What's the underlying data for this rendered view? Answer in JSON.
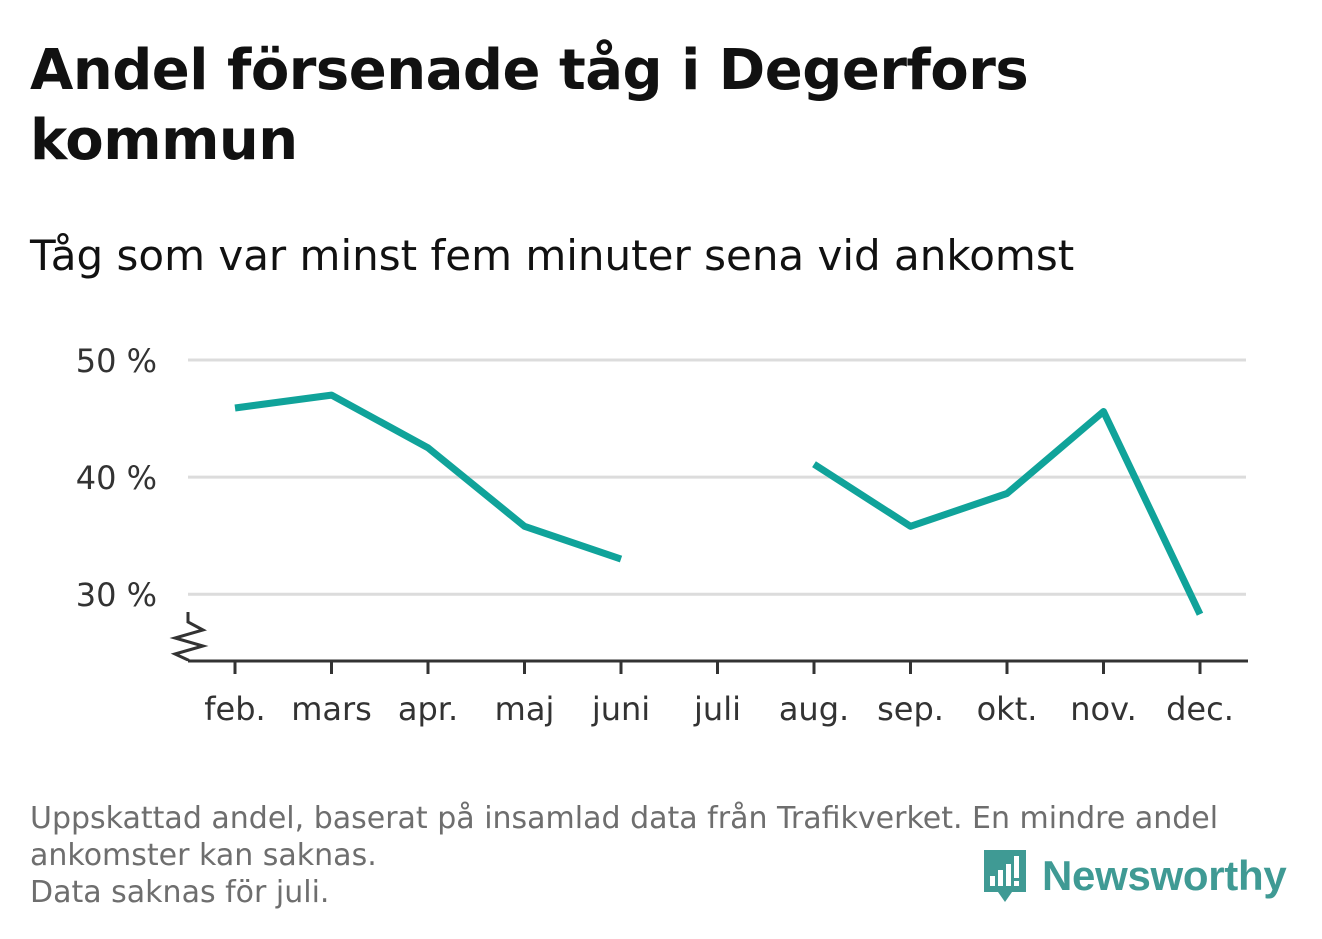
{
  "header": {
    "title": "Andel försenade tåg i Degerfors kommun",
    "subtitle": "Tåg som var minst fem minuter sena vid ankomst"
  },
  "chart_data": {
    "type": "line",
    "categories": [
      "feb.",
      "mars",
      "apr.",
      "maj",
      "juni",
      "juli",
      "aug.",
      "sep.",
      "okt.",
      "nov.",
      "dec."
    ],
    "series": [
      {
        "values": [
          45.9,
          47.0,
          42.5,
          35.8,
          33.0,
          null,
          41.1,
          35.8,
          38.6,
          45.6,
          28.3
        ],
        "color": "#10a39a"
      }
    ],
    "y_ticks": [
      30,
      40,
      50
    ],
    "y_tick_labels": [
      "30 %",
      "40 %",
      "50 %"
    ],
    "ylim": [
      24.3,
      50
    ],
    "grid": true,
    "y_axis_break": true,
    "colors": {
      "line": "#10a39a",
      "grid": "#dcdcdc",
      "axis": "#333333",
      "tick_label": "#333333"
    }
  },
  "footer": {
    "note_line1": "Uppskattad andel, baserat på insamlad data från Trafikverket. En mindre andel",
    "note_line2": "ankomster kan saknas.",
    "note_line3": "Data saknas för juli."
  },
  "brand": {
    "name": "Newsworthy",
    "icon": "newsworthy-logo-icon",
    "color": "#3f9a94"
  }
}
